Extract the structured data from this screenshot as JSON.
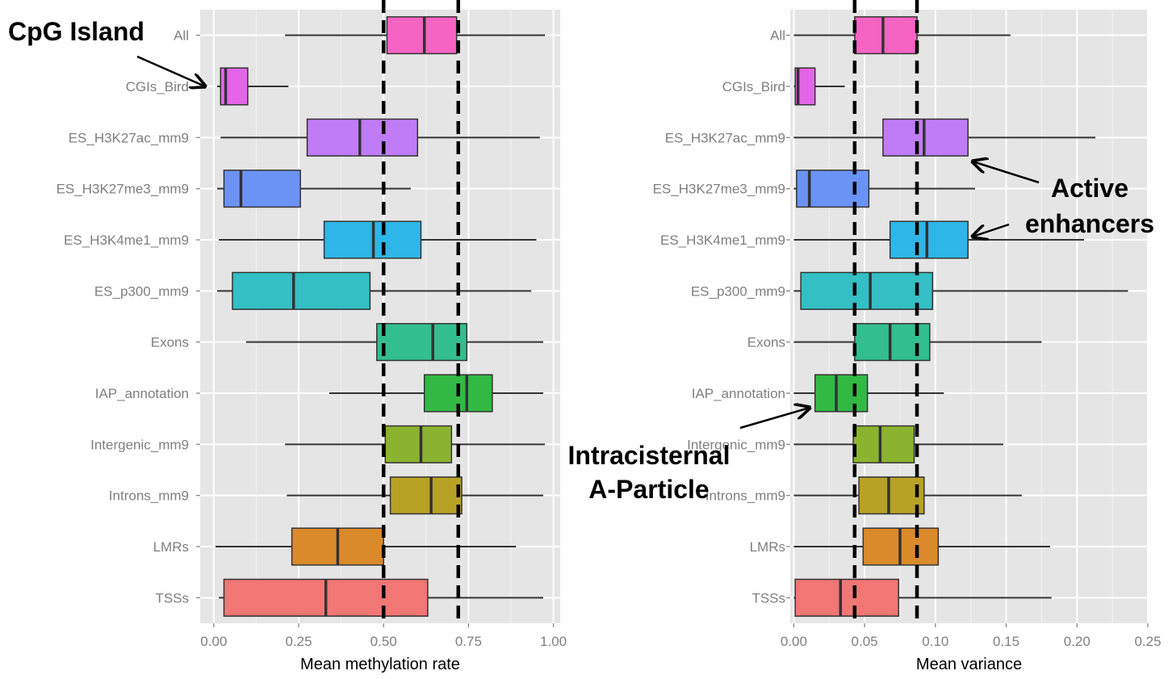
{
  "chart_data": [
    {
      "type": "boxplot",
      "orientation": "horizontal",
      "xlabel": "Mean methylation rate",
      "xlim": [
        -0.04,
        1.02
      ],
      "xticks": [
        0.0,
        0.25,
        0.5,
        0.75,
        1.0
      ],
      "xtick_labels": [
        "0.00",
        "0.25",
        "0.50",
        "0.75",
        "1.00"
      ],
      "grid": true,
      "reference_lines": [
        0.5,
        0.72
      ],
      "categories": [
        "All",
        "CGIs_Bird",
        "ES_H3K27ac_mm9",
        "ES_H3K27me3_mm9",
        "ES_H3K4me1_mm9",
        "ES_p300_mm9",
        "Exons",
        "IAP_annotation",
        "Intergenic_mm9",
        "Introns_mm9",
        "LMRs",
        "TSSs"
      ],
      "boxes": [
        {
          "category": "All",
          "min": 0.21,
          "q1": 0.51,
          "median": 0.62,
          "q3": 0.715,
          "max": 0.975,
          "color": "#F564C3"
        },
        {
          "category": "CGIs_Bird",
          "min": 0.01,
          "q1": 0.02,
          "median": 0.035,
          "q3": 0.1,
          "max": 0.22,
          "color": "#E565E8"
        },
        {
          "category": "ES_H3K27ac_mm9",
          "min": 0.02,
          "q1": 0.275,
          "median": 0.43,
          "q3": 0.6,
          "max": 0.96,
          "color": "#C07CF6"
        },
        {
          "category": "ES_H3K27me3_mm9",
          "min": 0.01,
          "q1": 0.03,
          "median": 0.08,
          "q3": 0.255,
          "max": 0.58,
          "color": "#6B93F5"
        },
        {
          "category": "ES_H3K4me1_mm9",
          "min": 0.015,
          "q1": 0.325,
          "median": 0.47,
          "q3": 0.61,
          "max": 0.95,
          "color": "#2EB6E8"
        },
        {
          "category": "ES_p300_mm9",
          "min": 0.01,
          "q1": 0.055,
          "median": 0.235,
          "q3": 0.46,
          "max": 0.935,
          "color": "#33BFC4"
        },
        {
          "category": "Exons",
          "min": 0.095,
          "q1": 0.48,
          "median": 0.645,
          "q3": 0.745,
          "max": 0.97,
          "color": "#33BE8F"
        },
        {
          "category": "IAP_annotation",
          "min": 0.34,
          "q1": 0.62,
          "median": 0.745,
          "q3": 0.82,
          "max": 0.97,
          "color": "#32B944"
        },
        {
          "category": "Intergenic_mm9",
          "min": 0.21,
          "q1": 0.505,
          "median": 0.61,
          "q3": 0.7,
          "max": 0.975,
          "color": "#8CB32F"
        },
        {
          "category": "Introns_mm9",
          "min": 0.215,
          "q1": 0.52,
          "median": 0.64,
          "q3": 0.73,
          "max": 0.97,
          "color": "#B8A226"
        },
        {
          "category": "LMRs",
          "min": 0.005,
          "q1": 0.23,
          "median": 0.365,
          "q3": 0.5,
          "max": 0.89,
          "color": "#DB8A2B"
        },
        {
          "category": "TSSs",
          "min": 0.015,
          "q1": 0.03,
          "median": 0.33,
          "q3": 0.63,
          "max": 0.97,
          "color": "#F07773"
        }
      ],
      "annotations": [
        {
          "text": "CpG Island",
          "target": "CGIs_Bird"
        }
      ]
    },
    {
      "type": "boxplot",
      "orientation": "horizontal",
      "xlabel": "Mean variance",
      "xlim": [
        -0.0025,
        0.25
      ],
      "xticks": [
        0.0,
        0.05,
        0.1,
        0.15,
        0.2,
        0.25
      ],
      "xtick_labels": [
        "0.00",
        "0.05",
        "0.10",
        "0.15",
        "0.20",
        "0.25"
      ],
      "grid": true,
      "reference_lines": [
        0.043,
        0.087
      ],
      "categories": [
        "All",
        "CGIs_Bird",
        "ES_H3K27ac_mm9",
        "ES_H3K27me3_mm9",
        "ES_H3K4me1_mm9",
        "ES_p300_mm9",
        "Exons",
        "IAP_annotation",
        "Intergenic_mm9",
        "Introns_mm9",
        "LMRs",
        "TSSs"
      ],
      "boxes": [
        {
          "category": "All",
          "min": 0.0,
          "q1": 0.043,
          "median": 0.063,
          "q3": 0.087,
          "max": 0.153,
          "color": "#F564C3"
        },
        {
          "category": "CGIs_Bird",
          "min": 0.0,
          "q1": 0.001,
          "median": 0.003,
          "q3": 0.015,
          "max": 0.036,
          "color": "#E565E8"
        },
        {
          "category": "ES_H3K27ac_mm9",
          "min": 0.0,
          "q1": 0.063,
          "median": 0.092,
          "q3": 0.123,
          "max": 0.213,
          "color": "#C07CF6"
        },
        {
          "category": "ES_H3K27me3_mm9",
          "min": 0.0,
          "q1": 0.002,
          "median": 0.011,
          "q3": 0.053,
          "max": 0.128,
          "color": "#6B93F5"
        },
        {
          "category": "ES_H3K4me1_mm9",
          "min": 0.0,
          "q1": 0.068,
          "median": 0.094,
          "q3": 0.123,
          "max": 0.205,
          "color": "#2EB6E8"
        },
        {
          "category": "ES_p300_mm9",
          "min": 0.0,
          "q1": 0.005,
          "median": 0.054,
          "q3": 0.098,
          "max": 0.236,
          "color": "#33BFC4"
        },
        {
          "category": "Exons",
          "min": 0.0,
          "q1": 0.043,
          "median": 0.068,
          "q3": 0.096,
          "max": 0.175,
          "color": "#33BE8F"
        },
        {
          "category": "IAP_annotation",
          "min": 0.0,
          "q1": 0.015,
          "median": 0.03,
          "q3": 0.052,
          "max": 0.106,
          "color": "#32B944"
        },
        {
          "category": "Intergenic_mm9",
          "min": 0.0,
          "q1": 0.042,
          "median": 0.061,
          "q3": 0.085,
          "max": 0.148,
          "color": "#8CB32F"
        },
        {
          "category": "Introns_mm9",
          "min": 0.0,
          "q1": 0.046,
          "median": 0.067,
          "q3": 0.092,
          "max": 0.161,
          "color": "#B8A226"
        },
        {
          "category": "LMRs",
          "min": 0.0,
          "q1": 0.049,
          "median": 0.075,
          "q3": 0.102,
          "max": 0.181,
          "color": "#DB8A2B"
        },
        {
          "category": "TSSs",
          "min": 0.0,
          "q1": 0.001,
          "median": 0.033,
          "q3": 0.074,
          "max": 0.182,
          "color": "#F07773"
        }
      ],
      "annotations": [
        {
          "text": "Active enhancers",
          "lines": [
            "Active",
            "enhancers"
          ],
          "targets": [
            "ES_H3K27ac_mm9",
            "ES_H3K4me1_mm9"
          ]
        },
        {
          "text": "Intracisternal A-Particle",
          "lines": [
            "Intracisternal",
            "A-Particle"
          ],
          "target": "IAP_annotation"
        }
      ]
    }
  ],
  "colors": {
    "panel_background": "#E5E5E5",
    "grid_major": "#FFFFFF",
    "grid_minor": "#F2F2F2",
    "whisker": "#333333",
    "reference_line": "#000000"
  }
}
